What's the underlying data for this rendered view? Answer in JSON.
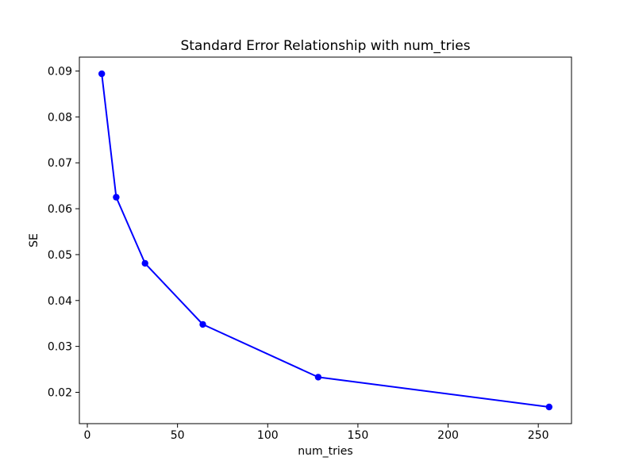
{
  "figure": {
    "background": "#ffffff",
    "spine_color": "#000000"
  },
  "chart_data": {
    "type": "line",
    "title": "Standard Error Relationship with num_tries",
    "xlabel": "num_tries",
    "ylabel": "SE",
    "x": [
      8,
      16,
      32,
      64,
      128,
      256
    ],
    "y": [
      0.0894,
      0.0625,
      0.0481,
      0.0348,
      0.0233,
      0.0168
    ],
    "line_color": "#0000ff",
    "marker": "circle",
    "marker_size": 4.2,
    "line_width": 2,
    "xlim": [
      -4.41,
      268.41
    ],
    "ylim": [
      0.01317,
      0.09303
    ],
    "xticks": [
      0,
      50,
      100,
      150,
      200,
      250
    ],
    "xtick_labels": [
      "0",
      "50",
      "100",
      "150",
      "200",
      "250"
    ],
    "yticks": [
      0.02,
      0.03,
      0.04,
      0.05,
      0.06,
      0.07,
      0.08,
      0.09
    ],
    "ytick_labels": [
      "0.02",
      "0.03",
      "0.04",
      "0.05",
      "0.06",
      "0.07",
      "0.08",
      "0.09"
    ],
    "grid": false,
    "legend_position": "none"
  }
}
